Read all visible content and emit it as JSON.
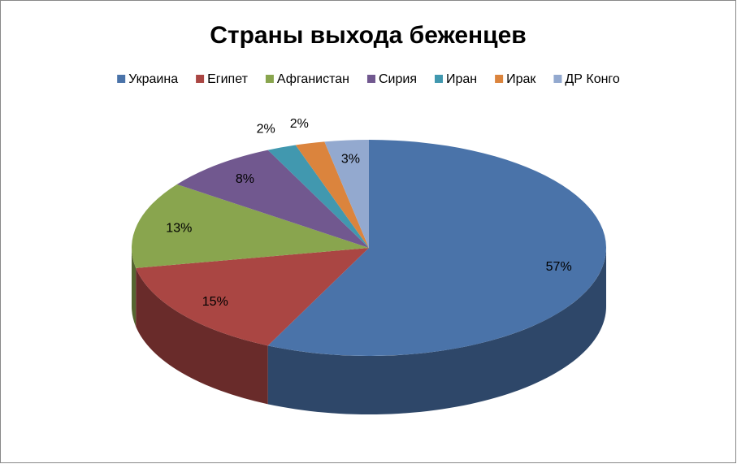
{
  "chart_data": {
    "type": "pie3d",
    "title": "Страны выхода беженцев",
    "categories": [
      "Украина",
      "Египет",
      "Афганистан",
      "Сирия",
      "Иран",
      "Ирак",
      "ДР Конго"
    ],
    "values": [
      57,
      15,
      13,
      8,
      2,
      2,
      3
    ],
    "value_labels": [
      "57%",
      "15%",
      "13%",
      "8%",
      "2%",
      "2%",
      "3%"
    ],
    "colors": [
      "#4a73a9",
      "#aa4643",
      "#89a54e",
      "#71588f",
      "#4198af",
      "#db843d",
      "#93a9cf"
    ],
    "legend": "top"
  }
}
